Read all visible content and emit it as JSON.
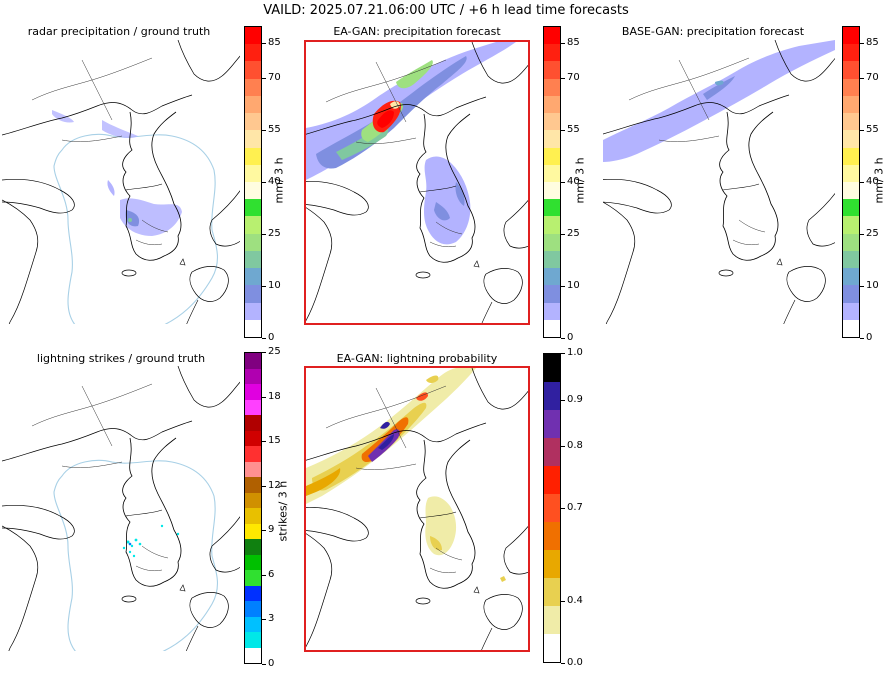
{
  "figure": {
    "title": "VAILD: 2025.07.21.06:00 UTC / +6 h lead time forecasts"
  },
  "panels": {
    "radar": {
      "title": "radar precipitation / ground truth"
    },
    "ea_precip": {
      "title": "EA-GAN: precipitation forecast"
    },
    "base_precip": {
      "title": "BASE-GAN: precipitation forecast"
    },
    "lightning_truth": {
      "title": "lightning strikes / ground truth"
    },
    "ea_lightning": {
      "title": "EA-GAN: lightning probability"
    }
  },
  "colorbars": {
    "precip": {
      "label": "mm/ 3 h",
      "ticks": [
        "0",
        "10",
        "25",
        "40",
        "55",
        "70",
        "85"
      ],
      "colors": [
        "#ffffff",
        "#b3b3ff",
        "#7f8fe0",
        "#6fa8d0",
        "#80c8a0",
        "#9ee080",
        "#b8f070",
        "#30e030",
        "#fffde0",
        "#fff9a0",
        "#fff050",
        "#ffe6a8",
        "#ffc890",
        "#ffa870",
        "#ff8050",
        "#ff5030",
        "#ff2010",
        "#ff0000"
      ]
    },
    "lightning_count": {
      "label": "strikes/ 3 h",
      "ticks": [
        "0",
        "3",
        "6",
        "9",
        "12",
        "15",
        "18",
        "25"
      ],
      "colors": [
        "#ffffff",
        "#00e8e8",
        "#00c0ff",
        "#0080ff",
        "#0030ff",
        "#30e030",
        "#00c000",
        "#108010",
        "#ffe800",
        "#e8c000",
        "#d09000",
        "#b06000",
        "#ff9090",
        "#ff3030",
        "#d00000",
        "#b00000",
        "#ff40ff",
        "#e000e0",
        "#b000b0",
        "#800080"
      ]
    },
    "lightning_prob": {
      "ticks": [
        "0.0",
        "0.4",
        "0.7",
        "0.8",
        "0.9",
        "1.0"
      ],
      "colors": [
        "#ffffff",
        "#f0eca8",
        "#e8d050",
        "#e8a800",
        "#f07000",
        "#ff5020",
        "#ff2000",
        "#b03060",
        "#7030b0",
        "#3020a0",
        "#000000"
      ]
    }
  }
}
